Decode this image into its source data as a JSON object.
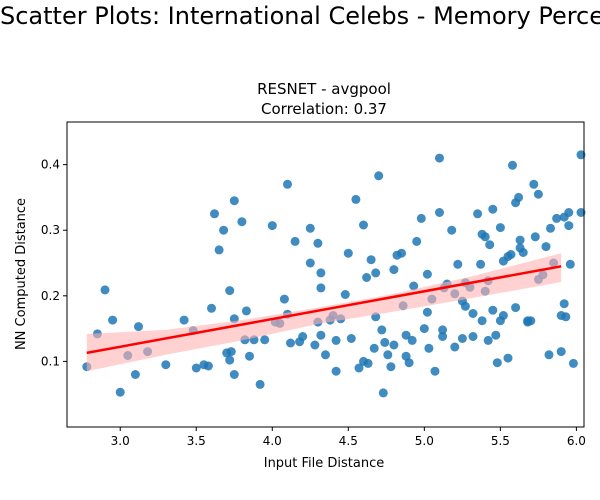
{
  "figure": {
    "suptitle": "Scatter Plots: International Celebs - Memory Perception"
  },
  "chart_data": {
    "type": "scatter",
    "title_line1": "RESNET - avgpool",
    "title_line2": "Correlation: 0.37",
    "xlabel": "Input File Distance",
    "ylabel": "NN Computed Distance",
    "xlim": [
      2.65,
      6.05
    ],
    "ylim": [
      0.0,
      0.465
    ],
    "xticks": [
      3.0,
      3.5,
      4.0,
      4.5,
      5.0,
      5.5,
      6.0
    ],
    "xtick_labels": [
      "3.0",
      "3.5",
      "4.0",
      "4.5",
      "5.0",
      "5.5",
      "6.0"
    ],
    "yticks": [
      0.1,
      0.2,
      0.3,
      0.4
    ],
    "ytick_labels": [
      "0.1",
      "0.2",
      "0.3",
      "0.4"
    ],
    "point_color": "#1f77b4",
    "fit_color": "#ff0000",
    "ci_color": "#ffb3b3",
    "regression": {
      "x": [
        2.78,
        5.9
      ],
      "y": [
        0.113,
        0.245
      ]
    },
    "ci_band": {
      "x": [
        2.78,
        3.3,
        3.8,
        4.3,
        4.8,
        5.3,
        5.9
      ],
      "upper": [
        0.142,
        0.148,
        0.163,
        0.182,
        0.203,
        0.229,
        0.265
      ],
      "lower": [
        0.085,
        0.11,
        0.132,
        0.157,
        0.176,
        0.196,
        0.221
      ]
    },
    "points": [
      [
        2.78,
        0.092
      ],
      [
        2.85,
        0.142
      ],
      [
        2.9,
        0.209
      ],
      [
        2.95,
        0.163
      ],
      [
        3.0,
        0.053
      ],
      [
        3.05,
        0.109
      ],
      [
        3.1,
        0.08
      ],
      [
        3.12,
        0.153
      ],
      [
        3.18,
        0.115
      ],
      [
        3.42,
        0.163
      ],
      [
        3.48,
        0.147
      ],
      [
        3.5,
        0.09
      ],
      [
        3.55,
        0.095
      ],
      [
        3.58,
        0.093
      ],
      [
        3.6,
        0.181
      ],
      [
        3.62,
        0.325
      ],
      [
        3.65,
        0.27
      ],
      [
        3.68,
        0.3
      ],
      [
        3.7,
        0.113
      ],
      [
        3.72,
        0.208
      ],
      [
        3.73,
        0.115
      ],
      [
        3.75,
        0.345
      ],
      [
        3.75,
        0.08
      ],
      [
        3.75,
        0.165
      ],
      [
        3.8,
        0.313
      ],
      [
        3.82,
        0.133
      ],
      [
        3.83,
        0.177
      ],
      [
        3.85,
        0.108
      ],
      [
        3.88,
        0.133
      ],
      [
        3.92,
        0.065
      ],
      [
        3.95,
        0.133
      ],
      [
        4.0,
        0.307
      ],
      [
        4.02,
        0.16
      ],
      [
        4.05,
        0.158
      ],
      [
        4.08,
        0.195
      ],
      [
        4.1,
        0.37
      ],
      [
        4.1,
        0.172
      ],
      [
        4.15,
        0.283
      ],
      [
        4.18,
        0.13
      ],
      [
        4.2,
        0.138
      ],
      [
        4.25,
        0.303
      ],
      [
        4.25,
        0.25
      ],
      [
        4.28,
        0.125
      ],
      [
        4.3,
        0.16
      ],
      [
        4.3,
        0.28
      ],
      [
        4.32,
        0.212
      ],
      [
        4.32,
        0.14
      ],
      [
        4.35,
        0.11
      ],
      [
        4.38,
        0.163
      ],
      [
        4.4,
        0.17
      ],
      [
        4.42,
        0.132
      ],
      [
        4.42,
        0.085
      ],
      [
        4.45,
        0.165
      ],
      [
        4.48,
        0.202
      ],
      [
        4.5,
        0.265
      ],
      [
        4.52,
        0.135
      ],
      [
        4.55,
        0.347
      ],
      [
        4.57,
        0.09
      ],
      [
        4.6,
        0.1
      ],
      [
        4.6,
        0.308
      ],
      [
        4.62,
        0.228
      ],
      [
        4.63,
        0.097
      ],
      [
        4.65,
        0.255
      ],
      [
        4.67,
        0.12
      ],
      [
        4.68,
        0.235
      ],
      [
        4.7,
        0.383
      ],
      [
        4.72,
        0.148
      ],
      [
        4.73,
        0.052
      ],
      [
        4.74,
        0.129
      ],
      [
        4.76,
        0.11
      ],
      [
        4.78,
        0.092
      ],
      [
        4.8,
        0.24
      ],
      [
        4.8,
        0.125
      ],
      [
        4.82,
        0.262
      ],
      [
        4.85,
        0.265
      ],
      [
        4.86,
        0.185
      ],
      [
        4.88,
        0.14
      ],
      [
        4.9,
        0.098
      ],
      [
        4.92,
        0.132
      ],
      [
        4.93,
        0.215
      ],
      [
        4.95,
        0.283
      ],
      [
        4.98,
        0.318
      ],
      [
        5.0,
        0.15
      ],
      [
        5.02,
        0.233
      ],
      [
        5.02,
        0.175
      ],
      [
        5.05,
        0.195
      ],
      [
        5.07,
        0.085
      ],
      [
        5.1,
        0.41
      ],
      [
        5.1,
        0.327
      ],
      [
        5.12,
        0.148
      ],
      [
        5.12,
        0.138
      ],
      [
        5.13,
        0.212
      ],
      [
        5.15,
        0.218
      ],
      [
        5.18,
        0.3
      ],
      [
        5.2,
        0.203
      ],
      [
        5.2,
        0.122
      ],
      [
        5.22,
        0.248
      ],
      [
        5.25,
        0.135
      ],
      [
        5.25,
        0.192
      ],
      [
        5.27,
        0.22
      ],
      [
        5.27,
        0.184
      ],
      [
        5.3,
        0.213
      ],
      [
        5.32,
        0.138
      ],
      [
        5.32,
        0.173
      ],
      [
        5.35,
        0.325
      ],
      [
        5.37,
        0.248
      ],
      [
        5.38,
        0.162
      ],
      [
        5.38,
        0.294
      ],
      [
        5.4,
        0.29
      ],
      [
        5.4,
        0.207
      ],
      [
        5.42,
        0.132
      ],
      [
        5.42,
        0.223
      ],
      [
        5.43,
        0.278
      ],
      [
        5.45,
        0.332
      ],
      [
        5.45,
        0.178
      ],
      [
        5.47,
        0.14
      ],
      [
        5.48,
        0.098
      ],
      [
        5.5,
        0.304
      ],
      [
        5.5,
        0.162
      ],
      [
        5.52,
        0.17
      ],
      [
        5.52,
        0.253
      ],
      [
        5.55,
        0.26
      ],
      [
        5.57,
        0.263
      ],
      [
        5.58,
        0.399
      ],
      [
        5.6,
        0.342
      ],
      [
        5.6,
        0.182
      ],
      [
        5.62,
        0.35
      ],
      [
        5.63,
        0.273
      ],
      [
        5.63,
        0.285
      ],
      [
        5.65,
        0.266
      ],
      [
        5.68,
        0.162
      ],
      [
        5.68,
        0.16
      ],
      [
        5.7,
        0.162
      ],
      [
        5.72,
        0.37
      ],
      [
        5.73,
        0.29
      ],
      [
        5.75,
        0.225
      ],
      [
        5.75,
        0.355
      ],
      [
        5.78,
        0.232
      ],
      [
        5.8,
        0.275
      ],
      [
        5.82,
        0.11
      ],
      [
        5.83,
        0.303
      ],
      [
        5.85,
        0.25
      ],
      [
        5.87,
        0.318
      ],
      [
        5.9,
        0.17
      ],
      [
        5.9,
        0.115
      ],
      [
        5.92,
        0.188
      ],
      [
        5.92,
        0.32
      ],
      [
        5.93,
        0.168
      ],
      [
        5.95,
        0.327
      ],
      [
        5.95,
        0.307
      ],
      [
        5.96,
        0.248
      ],
      [
        5.98,
        0.097
      ],
      [
        6.03,
        0.415
      ],
      [
        6.03,
        0.327
      ],
      [
        3.72,
        0.102
      ],
      [
        4.32,
        0.235
      ],
      [
        4.12,
        0.128
      ],
      [
        4.68,
        0.168
      ],
      [
        5.03,
        0.12
      ],
      [
        5.55,
        0.105
      ],
      [
        4.88,
        0.108
      ],
      [
        3.3,
        0.095
      ]
    ]
  }
}
